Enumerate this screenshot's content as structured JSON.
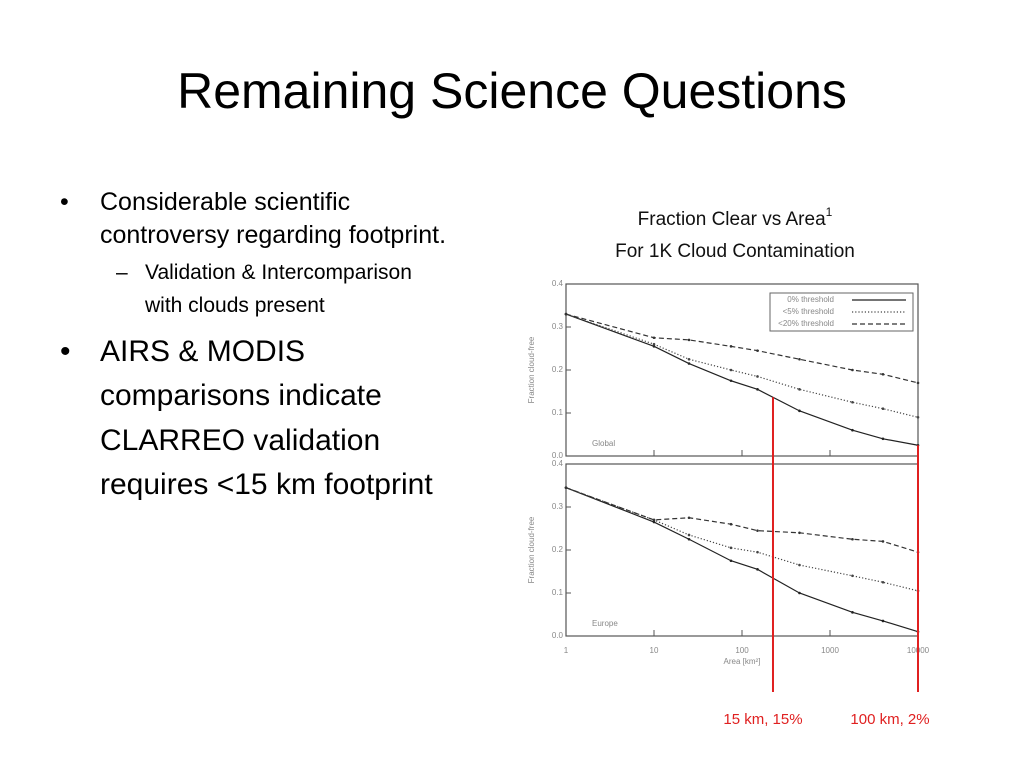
{
  "title": "Remaining Science Questions",
  "bullets": [
    {
      "text": "Considerable scientific controversy regarding footprint.",
      "sub": [
        "Validation & Intercomparison with clouds present"
      ]
    },
    {
      "text": "AIRS & MODIS comparisons indicate CLARREO validation requires <15 km footprint"
    }
  ],
  "figure": {
    "title": "Fraction Clear vs Area",
    "title_sup": "1",
    "subtitle": "For 1K Cloud Contamination",
    "markers": [
      {
        "x": 225,
        "label": "15 km, 15%",
        "color": "#e02020"
      },
      {
        "x": 10000,
        "label": "100 km, 2%",
        "color": "#e02020"
      }
    ]
  },
  "chart_data": [
    {
      "type": "line",
      "panel_label": "Global",
      "ylabel": "Fraction cloud-free",
      "log_x": true,
      "legend": "top-right",
      "x": [
        1,
        10,
        25,
        75,
        150,
        450,
        1800,
        4000,
        10000
      ],
      "xlim": [
        1,
        10000
      ],
      "ylim": [
        0,
        0.4
      ],
      "xticks": [
        1,
        10,
        100,
        1000,
        10000
      ],
      "yticks": [
        {
          "value": 0,
          "label": "0.0"
        },
        0.1,
        0.2,
        0.3,
        0.4
      ],
      "series": [
        {
          "name": "0% threshold",
          "color": "#222222",
          "dash": "solid",
          "values": [
            0.33,
            0.255,
            0.215,
            0.175,
            0.155,
            0.105,
            0.06,
            0.04,
            0.025
          ]
        },
        {
          "name": "<5% threshold",
          "color": "#444444",
          "dash": "dotted",
          "values": [
            0.33,
            0.26,
            0.225,
            0.2,
            0.185,
            0.155,
            0.125,
            0.11,
            0.09
          ]
        },
        {
          "name": "<20% threshold",
          "color": "#333333",
          "dash": "dashed",
          "values": [
            0.33,
            0.275,
            0.27,
            0.255,
            0.245,
            0.225,
            0.2,
            0.19,
            0.17
          ]
        }
      ]
    },
    {
      "type": "line",
      "panel_label": "Europe",
      "ylabel": "Fraction cloud-free",
      "xlabel": "Area [km²]",
      "log_x": true,
      "x": [
        1,
        10,
        25,
        75,
        150,
        450,
        1800,
        4000,
        10000
      ],
      "xlim": [
        1,
        10000
      ],
      "ylim": [
        0,
        0.4
      ],
      "xticks": [
        1,
        10,
        100,
        1000,
        10000
      ],
      "yticks": [
        {
          "value": 0,
          "label": "0.0"
        },
        0.1,
        0.2,
        0.3,
        0.4
      ],
      "series": [
        {
          "color": "#222222",
          "dash": "solid",
          "values": [
            0.345,
            0.265,
            0.225,
            0.175,
            0.155,
            0.1,
            0.055,
            0.035,
            0.01
          ]
        },
        {
          "color": "#444444",
          "dash": "dotted",
          "values": [
            0.345,
            0.27,
            0.235,
            0.205,
            0.195,
            0.165,
            0.14,
            0.125,
            0.105
          ]
        },
        {
          "color": "#333333",
          "dash": "dashed",
          "values": [
            0.345,
            0.27,
            0.275,
            0.26,
            0.245,
            0.24,
            0.225,
            0.22,
            0.195
          ]
        }
      ]
    }
  ]
}
